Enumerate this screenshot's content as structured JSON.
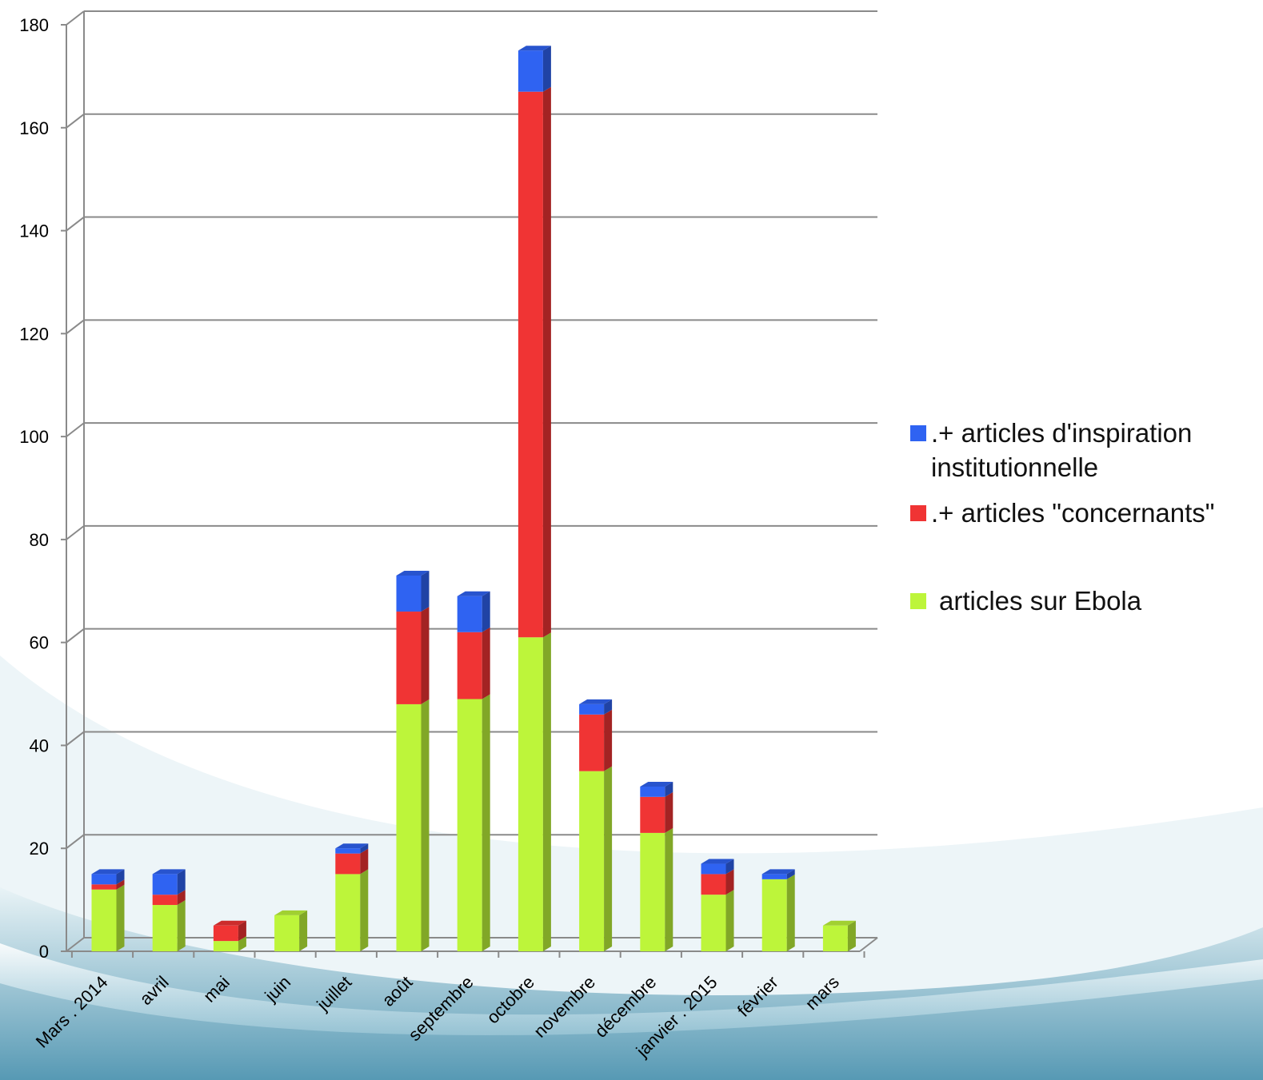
{
  "chart_data": {
    "type": "bar",
    "stacked": true,
    "three_d": true,
    "categories": [
      "Mars . 2014",
      "avril",
      "mai",
      "juin",
      "juillet",
      "août",
      "septembre",
      "octobre",
      "novembre",
      "décembre",
      "janvier . 2015",
      "février",
      "mars"
    ],
    "series": [
      {
        "name": "articles sur Ebola",
        "color": "#bdf53a",
        "values": [
          12,
          9,
          2,
          7,
          15,
          48,
          49,
          61,
          35,
          23,
          11,
          14,
          5
        ]
      },
      {
        "name": ".+ articles \"concernants\"",
        "color": "#f03434",
        "values": [
          1,
          2,
          3,
          0,
          4,
          18,
          13,
          106,
          11,
          7,
          4,
          0,
          0
        ]
      },
      {
        "name": ".+ articles d'inspiration institutionnelle",
        "color": "#2f63f2",
        "values": [
          2,
          4,
          0,
          0,
          1,
          7,
          7,
          8,
          2,
          2,
          2,
          1,
          0
        ]
      }
    ],
    "yticks": [
      "0",
      "20",
      "40",
      "60",
      "80",
      "100",
      "120",
      "140",
      "160",
      "180"
    ],
    "ylim": [
      0,
      180
    ],
    "xlabel": "",
    "ylabel": "",
    "grid": true,
    "legend_position": "right"
  },
  "legend": {
    "items": [
      {
        "label_line1": ".+ articles d'inspiration",
        "label_line2": "institutionnelle",
        "color": "#2f63f2"
      },
      {
        "label_line1": ".+ articles \"concernants\"",
        "label_line2": "",
        "color": "#f03434"
      },
      {
        "label_line1": "articles sur Ebola",
        "label_line2": "",
        "color": "#bdf53a"
      }
    ]
  }
}
